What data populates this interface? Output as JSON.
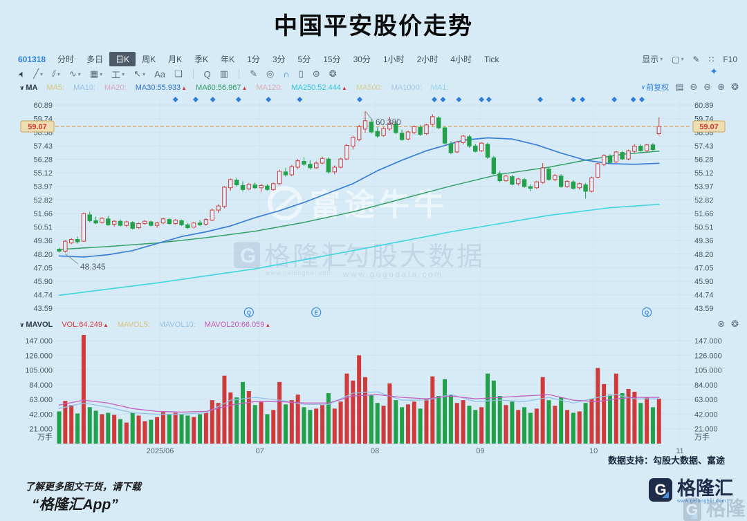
{
  "header": {
    "title": "中国平安股价走势"
  },
  "toolbar": {
    "symbol": "601318",
    "periods": [
      "分时",
      "多日",
      "日K",
      "周K",
      "月K",
      "季K",
      "年K",
      "1分",
      "3分",
      "5分",
      "15分",
      "30分",
      "1小时",
      "2小时",
      "4小时",
      "Tick"
    ],
    "active_period": "日K",
    "right_items": [
      {
        "name": "display-dropdown",
        "label": "显示",
        "caret": true
      },
      {
        "name": "layout-dropdown",
        "glyph": "▢",
        "caret": true
      },
      {
        "name": "brush-icon",
        "glyph": "✎"
      },
      {
        "name": "expand-icon",
        "glyph": "∷"
      },
      {
        "name": "f10-button",
        "label": "F10"
      }
    ]
  },
  "drawing_toolbar": [
    {
      "name": "cursor-icon",
      "glyph": "➤",
      "color": "#2c3a46"
    },
    {
      "name": "trendline-icon",
      "glyph": "╱",
      "dd": true
    },
    {
      "name": "channel-icon",
      "glyph": "⫽",
      "dd": true
    },
    {
      "name": "wave-icon",
      "glyph": "∿",
      "dd": true
    },
    {
      "name": "pattern-icon",
      "glyph": "▦",
      "dd": true
    },
    {
      "name": "price-range-icon",
      "glyph": "工",
      "dd": true
    },
    {
      "name": "arrow-icon",
      "glyph": "↖",
      "dd": true
    },
    {
      "name": "text-icon",
      "glyph": "Aa"
    },
    {
      "name": "comment-icon",
      "glyph": "❏"
    },
    {
      "sep": true
    },
    {
      "name": "search-icon",
      "glyph": "Q"
    },
    {
      "name": "chart-mode-icon",
      "glyph": "▥"
    },
    {
      "sep": true
    },
    {
      "name": "pencil-icon",
      "glyph": "✎"
    },
    {
      "name": "target-icon",
      "glyph": "◎"
    },
    {
      "name": "magnet-icon",
      "glyph": "∩",
      "color": "#2f7fd9"
    },
    {
      "name": "trash-icon",
      "glyph": "▯"
    },
    {
      "name": "split-icon",
      "glyph": "⊜"
    },
    {
      "name": "gear-icon",
      "glyph": "❂"
    }
  ],
  "indicators": {
    "ma": {
      "toggle": "MA",
      "items": [
        {
          "text": "MA5:",
          "color": "#d8c478"
        },
        {
          "text": "MA10:",
          "color": "#93c1e8"
        },
        {
          "text": "MA20:",
          "color": "#dca6c0"
        },
        {
          "text": "MA30:55.933",
          "color": "#2e6fd0",
          "arrow": true
        },
        {
          "text": "MA60:56.967",
          "color": "#2f9e62",
          "arrow": true
        },
        {
          "text": "MA120:",
          "color": "#dcaab4"
        },
        {
          "text": "MA250:52.444",
          "color": "#2fc4d8",
          "arrow": true
        },
        {
          "text": "MA500:",
          "color": "#d6cd8f"
        },
        {
          "text": "MA1000:",
          "color": "#a3c6e6"
        },
        {
          "text": "MA1:",
          "color": "#93d2ea"
        }
      ],
      "adjust_label": "前复权",
      "pane_icons": [
        {
          "name": "indicator-panel-icon",
          "glyph": "▤"
        },
        {
          "name": "collapse-icon",
          "glyph": "⊖"
        },
        {
          "name": "zoom-out-icon",
          "glyph": "⊖"
        },
        {
          "name": "zoom-in-icon",
          "glyph": "⊕"
        },
        {
          "name": "pane-settings-icon",
          "glyph": "❂"
        }
      ]
    },
    "mavol": {
      "toggle": "MAVOL",
      "items": [
        {
          "text": "VOL:64.249",
          "color": "#d43c3c",
          "arrow": true
        },
        {
          "text": "MAVOL5:",
          "color": "#d8c478"
        },
        {
          "text": "MAVOL10:",
          "color": "#93c1e8"
        },
        {
          "text": "MAVOL20:66.059",
          "color": "#c558b8",
          "arrow": true
        }
      ],
      "pane_icons": [
        {
          "name": "close-pane-icon",
          "glyph": "⊗"
        },
        {
          "name": "volume-settings-icon",
          "glyph": "❂"
        }
      ]
    }
  },
  "watermarks": {
    "futu": {
      "text": "富途牛牛"
    },
    "gelonghui": {
      "logo_letter": "G",
      "brand": "格隆汇",
      "brand_url": "www.gelonghui.com",
      "partner": "勾股大数据",
      "partner_url": "www.gogudata.com"
    }
  },
  "support_text": "数据支持：勾股大数据、富途",
  "footer": {
    "line1": "了解更多图文干货，请下载",
    "line2": "“格隆汇App”",
    "logo_letter": "G",
    "logo_text": "格隆汇",
    "logo_url": "www.gelonghui.com"
  },
  "colors": {
    "up": "#cf3b3b",
    "down": "#23a04a",
    "ma30": "#3a7fd6",
    "ma60": "#35a06a",
    "ma250": "#3fd6dd",
    "mavol10": "#93c1e8",
    "mavol20": "#c55fc0",
    "accent": "#2f7fd9",
    "current_line": "#dd8f2e",
    "label_box_bg": "#eedfb2",
    "label_box_border": "#c9a362",
    "label_box_text": "#d0342c"
  },
  "chart_data": {
    "type": "candlestick",
    "symbol": "601318",
    "title": "中国平安股价走势",
    "current_price": "59.07",
    "price_axis": {
      "ticks": [
        60.89,
        59.74,
        58.58,
        57.43,
        56.28,
        55.12,
        53.97,
        52.82,
        51.66,
        50.51,
        49.36,
        48.2,
        47.05,
        45.9,
        44.74,
        43.59
      ]
    },
    "volume_axis": {
      "ticks": [
        147,
        126,
        105,
        84,
        63,
        42,
        21
      ],
      "unit": "万手"
    },
    "x_ticks": [
      {
        "label": "2025/06",
        "i": 16.5
      },
      {
        "label": "07",
        "i": 32.8
      },
      {
        "label": "08",
        "i": 51.6
      },
      {
        "label": "09",
        "i": 68.8
      },
      {
        "label": "10",
        "i": 87.3
      },
      {
        "label": "11",
        "i": 101.4
      }
    ],
    "annotations": {
      "high_label": "60.380",
      "low_label": "48.345",
      "high_i": 50,
      "low_i": 1
    },
    "candles": [
      [
        48.62,
        48.75,
        48.35,
        48.45
      ],
      [
        48.45,
        49.4,
        48.345,
        49.3
      ],
      [
        49.15,
        49.55,
        49.05,
        49.45
      ],
      [
        49.45,
        49.7,
        49.1,
        49.25
      ],
      [
        49.3,
        51.75,
        49.25,
        51.65
      ],
      [
        51.55,
        51.8,
        50.9,
        51.05
      ],
      [
        51.05,
        51.4,
        50.75,
        50.85
      ],
      [
        50.9,
        51.35,
        50.8,
        51.25
      ],
      [
        51.2,
        51.45,
        50.6,
        50.7
      ],
      [
        50.75,
        51.1,
        50.55,
        51.0
      ],
      [
        51.0,
        51.15,
        50.55,
        50.65
      ],
      [
        50.65,
        51.05,
        50.5,
        50.95
      ],
      [
        50.9,
        51.0,
        50.3,
        50.4
      ],
      [
        50.45,
        50.9,
        50.35,
        50.8
      ],
      [
        50.8,
        51.1,
        50.7,
        51.0
      ],
      [
        50.95,
        51.05,
        50.55,
        50.65
      ],
      [
        50.65,
        50.95,
        50.45,
        50.85
      ],
      [
        50.85,
        51.3,
        50.75,
        51.2
      ],
      [
        51.15,
        51.25,
        50.7,
        50.8
      ],
      [
        50.8,
        51.2,
        50.7,
        51.1
      ],
      [
        51.05,
        51.15,
        50.6,
        50.7
      ],
      [
        50.7,
        50.85,
        50.35,
        50.45
      ],
      [
        50.5,
        50.95,
        50.4,
        50.85
      ],
      [
        50.85,
        51.1,
        50.6,
        50.7
      ],
      [
        50.75,
        51.25,
        50.65,
        51.15
      ],
      [
        51.1,
        52.1,
        51.0,
        51.95
      ],
      [
        51.95,
        52.45,
        51.7,
        52.3
      ],
      [
        52.25,
        54.0,
        52.1,
        53.9
      ],
      [
        53.85,
        54.65,
        53.6,
        54.55
      ],
      [
        54.5,
        54.7,
        53.95,
        54.1
      ],
      [
        54.05,
        54.4,
        53.55,
        53.7
      ],
      [
        53.75,
        54.25,
        53.65,
        54.15
      ],
      [
        54.1,
        54.3,
        53.75,
        53.85
      ],
      [
        53.85,
        54.2,
        53.5,
        54.05
      ],
      [
        54.0,
        54.15,
        53.6,
        53.7
      ],
      [
        53.7,
        54.3,
        53.6,
        54.2
      ],
      [
        54.2,
        55.4,
        54.1,
        55.25
      ],
      [
        55.2,
        55.55,
        54.8,
        54.95
      ],
      [
        54.95,
        55.8,
        54.85,
        55.65
      ],
      [
        55.6,
        56.3,
        55.45,
        56.15
      ],
      [
        56.1,
        56.45,
        55.7,
        55.85
      ],
      [
        55.85,
        56.2,
        55.4,
        55.55
      ],
      [
        55.55,
        56.1,
        55.45,
        55.95
      ],
      [
        55.95,
        56.5,
        55.85,
        56.35
      ],
      [
        56.3,
        56.45,
        55.05,
        55.2
      ],
      [
        55.2,
        55.75,
        55.0,
        55.6
      ],
      [
        55.6,
        56.4,
        55.5,
        56.3
      ],
      [
        56.3,
        57.6,
        56.2,
        57.45
      ],
      [
        57.4,
        58.3,
        57.1,
        58.15
      ],
      [
        57.95,
        59.2,
        57.8,
        59.05
      ],
      [
        58.85,
        60.38,
        58.55,
        59.55
      ],
      [
        59.45,
        59.7,
        58.45,
        58.6
      ],
      [
        58.65,
        59.0,
        58.1,
        58.25
      ],
      [
        58.3,
        59.0,
        58.2,
        58.9
      ],
      [
        58.85,
        59.9,
        58.7,
        59.35
      ],
      [
        59.3,
        59.5,
        58.4,
        58.55
      ],
      [
        58.5,
        58.8,
        57.85,
        57.95
      ],
      [
        58.0,
        58.7,
        57.9,
        58.6
      ],
      [
        58.55,
        59.15,
        58.4,
        59.05
      ],
      [
        59.0,
        59.2,
        58.25,
        58.4
      ],
      [
        58.45,
        59.3,
        58.35,
        59.2
      ],
      [
        59.25,
        60.1,
        59.1,
        59.9
      ],
      [
        59.8,
        59.95,
        58.85,
        58.95
      ],
      [
        58.95,
        59.05,
        57.55,
        57.65
      ],
      [
        57.6,
        57.8,
        56.7,
        56.85
      ],
      [
        56.9,
        57.85,
        56.8,
        57.75
      ],
      [
        57.7,
        58.35,
        57.55,
        58.25
      ],
      [
        58.2,
        58.35,
        57.25,
        57.4
      ],
      [
        57.4,
        57.6,
        56.85,
        56.95
      ],
      [
        57.0,
        57.75,
        56.9,
        57.65
      ],
      [
        57.55,
        57.7,
        56.3,
        56.45
      ],
      [
        56.4,
        56.55,
        54.95,
        55.05
      ],
      [
        55.05,
        55.3,
        54.3,
        54.45
      ],
      [
        54.45,
        54.95,
        54.35,
        54.85
      ],
      [
        54.8,
        54.95,
        54.05,
        54.15
      ],
      [
        54.2,
        54.7,
        54.05,
        54.6
      ],
      [
        54.55,
        54.7,
        53.85,
        53.95
      ],
      [
        53.95,
        54.15,
        53.55,
        53.8
      ],
      [
        53.85,
        54.45,
        53.75,
        54.35
      ],
      [
        54.3,
        55.95,
        54.2,
        55.55
      ],
      [
        55.45,
        55.6,
        54.45,
        54.55
      ],
      [
        54.55,
        55.0,
        54.4,
        54.9
      ],
      [
        54.85,
        55.0,
        53.85,
        53.95
      ],
      [
        53.95,
        54.5,
        53.85,
        54.4
      ],
      [
        54.35,
        54.5,
        53.7,
        53.8
      ],
      [
        53.85,
        54.3,
        53.7,
        54.2
      ],
      [
        54.1,
        54.25,
        52.95,
        53.55
      ],
      [
        53.55,
        54.8,
        53.45,
        54.7
      ],
      [
        54.75,
        56.0,
        54.65,
        55.9
      ],
      [
        55.85,
        56.7,
        55.7,
        56.6
      ],
      [
        56.55,
        56.7,
        55.9,
        56.0
      ],
      [
        56.05,
        57.0,
        55.95,
        56.9
      ],
      [
        56.85,
        57.0,
        56.2,
        56.3
      ],
      [
        56.3,
        57.1,
        56.2,
        57.0
      ],
      [
        56.95,
        57.55,
        56.85,
        57.4
      ],
      [
        57.4,
        57.55,
        56.9,
        57.0
      ],
      [
        57.0,
        57.6,
        56.9,
        57.5
      ],
      [
        57.5,
        57.65,
        57.0,
        57.1
      ],
      [
        58.45,
        59.85,
        58.3,
        59.07
      ]
    ],
    "volumes": [
      46,
      61,
      55,
      43,
      155,
      52,
      47,
      42,
      44,
      41,
      35,
      30,
      44,
      40,
      32,
      34,
      38,
      45,
      42,
      44,
      42,
      40,
      38,
      42,
      44,
      62,
      58,
      97,
      73,
      66,
      88,
      75,
      55,
      60,
      42,
      48,
      88,
      56,
      62,
      70,
      52,
      48,
      50,
      55,
      72,
      50,
      60,
      100,
      90,
      126,
      95,
      70,
      58,
      54,
      86,
      62,
      52,
      56,
      60,
      50,
      64,
      96,
      68,
      92,
      70,
      58,
      62,
      54,
      48,
      52,
      100,
      90,
      68,
      55,
      60,
      48,
      52,
      44,
      50,
      95,
      62,
      54,
      66,
      48,
      44,
      46,
      58,
      64,
      108,
      85,
      70,
      100,
      72,
      78,
      74,
      58,
      66,
      52,
      64.249
    ],
    "ma30": [
      [
        0,
        48.05
      ],
      [
        4,
        47.95
      ],
      [
        8,
        48.15
      ],
      [
        12,
        48.5
      ],
      [
        16,
        49.1
      ],
      [
        20,
        49.7
      ],
      [
        24,
        50.1
      ],
      [
        28,
        50.6
      ],
      [
        32,
        51.3
      ],
      [
        36,
        51.9
      ],
      [
        40,
        52.6
      ],
      [
        44,
        53.4
      ],
      [
        48,
        54.2
      ],
      [
        52,
        55.3
      ],
      [
        56,
        56.2
      ],
      [
        60,
        57.0
      ],
      [
        64,
        57.6
      ],
      [
        66,
        57.9
      ],
      [
        70,
        58.1
      ],
      [
        74,
        58.0
      ],
      [
        78,
        57.5
      ],
      [
        82,
        56.8
      ],
      [
        86,
        56.2
      ],
      [
        90,
        55.9
      ],
      [
        94,
        55.85
      ],
      [
        98,
        55.933
      ]
    ],
    "ma60": [
      [
        0,
        48.6
      ],
      [
        8,
        48.85
      ],
      [
        16,
        49.15
      ],
      [
        24,
        49.6
      ],
      [
        32,
        50.15
      ],
      [
        40,
        50.9
      ],
      [
        48,
        51.8
      ],
      [
        56,
        52.9
      ],
      [
        64,
        54.0
      ],
      [
        72,
        55.0
      ],
      [
        80,
        55.6
      ],
      [
        86,
        56.2
      ],
      [
        92,
        56.7
      ],
      [
        98,
        56.967
      ]
    ],
    "ma250": [
      [
        0,
        44.7
      ],
      [
        16,
        45.75
      ],
      [
        32,
        46.95
      ],
      [
        48,
        48.5
      ],
      [
        64,
        50.1
      ],
      [
        80,
        51.5
      ],
      [
        90,
        52.15
      ],
      [
        98,
        52.444
      ]
    ],
    "mavol20": [
      [
        0,
        55
      ],
      [
        4,
        62
      ],
      [
        8,
        58
      ],
      [
        12,
        50
      ],
      [
        16,
        46
      ],
      [
        20,
        45
      ],
      [
        24,
        46
      ],
      [
        28,
        55
      ],
      [
        32,
        60
      ],
      [
        36,
        60
      ],
      [
        40,
        58
      ],
      [
        44,
        58
      ],
      [
        48,
        68
      ],
      [
        52,
        70
      ],
      [
        56,
        66
      ],
      [
        60,
        64
      ],
      [
        64,
        68
      ],
      [
        68,
        64
      ],
      [
        72,
        66
      ],
      [
        76,
        68
      ],
      [
        80,
        70
      ],
      [
        84,
        62
      ],
      [
        88,
        60
      ],
      [
        91,
        64
      ],
      [
        94,
        66
      ],
      [
        98,
        66.059
      ]
    ],
    "mavol10": [
      [
        0,
        50
      ],
      [
        4,
        58
      ],
      [
        8,
        52
      ],
      [
        12,
        44
      ],
      [
        16,
        42
      ],
      [
        20,
        42
      ],
      [
        24,
        44
      ],
      [
        28,
        62
      ],
      [
        32,
        66
      ],
      [
        36,
        62
      ],
      [
        40,
        56
      ],
      [
        44,
        56
      ],
      [
        48,
        72
      ],
      [
        52,
        74
      ],
      [
        56,
        62
      ],
      [
        60,
        62
      ],
      [
        64,
        70
      ],
      [
        68,
        60
      ],
      [
        72,
        62
      ],
      [
        76,
        60
      ],
      [
        80,
        66
      ],
      [
        84,
        58
      ],
      [
        88,
        66
      ],
      [
        91,
        70
      ],
      [
        94,
        64
      ],
      [
        98,
        64
      ]
    ],
    "diamond_markers": [
      19,
      22.3,
      25.1,
      29.3,
      34.2,
      39.3,
      49.1,
      61.3,
      62.7,
      65.3,
      69,
      70.2,
      78.6,
      84,
      85.5,
      90.7,
      93.8,
      95.2
    ],
    "event_markers": [
      {
        "i": 31,
        "glyph": "Q"
      },
      {
        "i": 42,
        "glyph": "E"
      },
      {
        "i": 96,
        "glyph": "Q"
      }
    ]
  }
}
